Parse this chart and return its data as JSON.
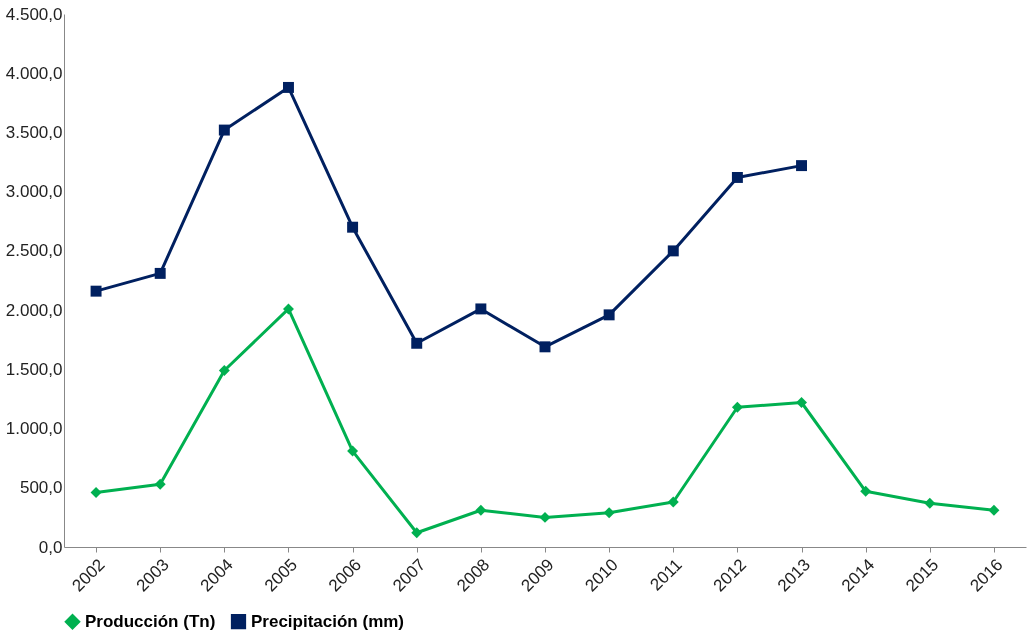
{
  "chart_data": {
    "type": "line",
    "categories": [
      "2002",
      "2003",
      "2004",
      "2005",
      "2006",
      "2007",
      "2008",
      "2009",
      "2010",
      "2011",
      "2012",
      "2013",
      "2014",
      "2015",
      "2016"
    ],
    "series": [
      {
        "name": "Producción (Tn)",
        "color": "#00b050",
        "marker": "diamond",
        "values": [
          460,
          530,
          1490,
          2010,
          810,
          120,
          310,
          250,
          290,
          380,
          1180,
          1220,
          470,
          370,
          310
        ]
      },
      {
        "name": "Precipitación (mm)",
        "color": "#002060",
        "marker": "square",
        "values": [
          2160,
          2310,
          3520,
          3880,
          2700,
          1720,
          2010,
          1690,
          1960,
          2500,
          3120,
          3220,
          null,
          null,
          null
        ]
      }
    ],
    "ylim": [
      0,
      4500
    ],
    "yticks": [
      {
        "value": 0,
        "label": "0,0"
      },
      {
        "value": 500,
        "label": "500,0"
      },
      {
        "value": 1000,
        "label": "1.000,0"
      },
      {
        "value": 1500,
        "label": "1.500,0"
      },
      {
        "value": 2000,
        "label": "2.000,0"
      },
      {
        "value": 2500,
        "label": "2.500,0"
      },
      {
        "value": 3000,
        "label": "3.000,0"
      },
      {
        "value": 3500,
        "label": "3.500,0"
      },
      {
        "value": 4000,
        "label": "4.000,0"
      },
      {
        "value": 4500,
        "label": "4.500,0"
      }
    ],
    "grid": false,
    "legend": "bottom",
    "line_style": "solid"
  }
}
